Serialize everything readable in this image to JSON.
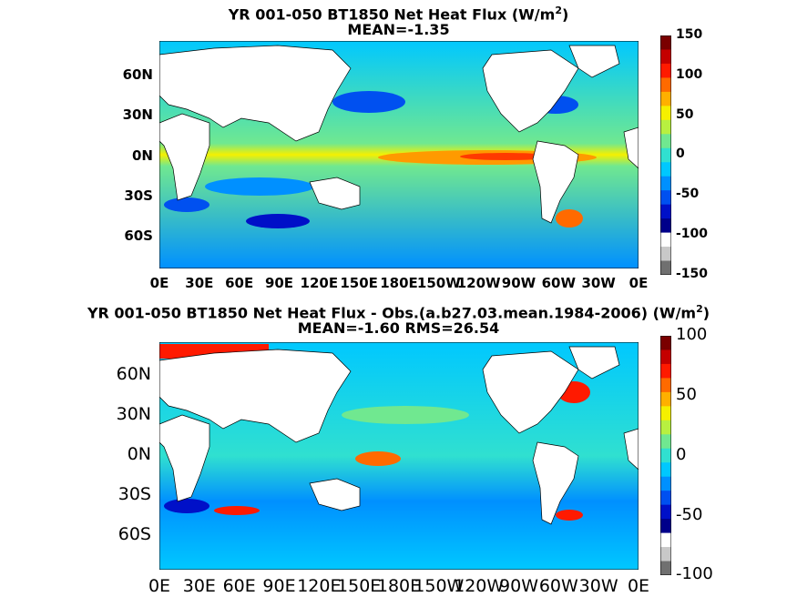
{
  "chart_data": [
    {
      "type": "heatmap",
      "title_line1": "YR 001-050 BT1850  Net Heat Flux (W/m",
      "title_sup": "2",
      "title_close": ")",
      "title_line2": "MEAN=-1.35",
      "y_ticks": [
        "60N",
        "30N",
        "0N",
        "30S",
        "60S"
      ],
      "x_ticks": [
        "0E",
        "30E",
        "60E",
        "90E",
        "120E",
        "150E",
        "180E",
        "150W",
        "120W",
        "90W",
        "60W",
        "30W",
        "0E"
      ],
      "colorbar_ticks": [
        "150",
        "100",
        "50",
        "0",
        "-50",
        "-100",
        "-150"
      ],
      "colorbar_range": [
        -150,
        150
      ],
      "grid": false
    },
    {
      "type": "heatmap",
      "title_line1": "YR 001-050 BT1850  Net Heat Flux - Obs.(a.b27.03.mean.1984-2006) (W/m",
      "title_sup": "2",
      "title_close": ")",
      "title_line2": "MEAN=-1.60 RMS=26.54",
      "y_ticks": [
        "60N",
        "30N",
        "0N",
        "30S",
        "60S"
      ],
      "x_ticks": [
        "0E",
        "30E",
        "60E",
        "90E",
        "120E",
        "150E",
        "180E",
        "150W",
        "120W",
        "90W",
        "60W",
        "30W",
        "0E"
      ],
      "colorbar_ticks": [
        "100",
        "50",
        "0",
        "-50",
        "-100"
      ],
      "colorbar_range": [
        -100,
        100
      ],
      "grid": false
    }
  ],
  "colormap": [
    "#7a0000",
    "#c40000",
    "#ff1a00",
    "#ff6a00",
    "#ffb000",
    "#f5f000",
    "#b8f040",
    "#70e890",
    "#30e0d0",
    "#00c8ff",
    "#0090ff",
    "#0050f0",
    "#0010c8",
    "#00008a",
    "#ffffff",
    "#c8c8c8",
    "#707070"
  ],
  "land_color": "#ffffff",
  "ocean_base": "#6fe6a8"
}
